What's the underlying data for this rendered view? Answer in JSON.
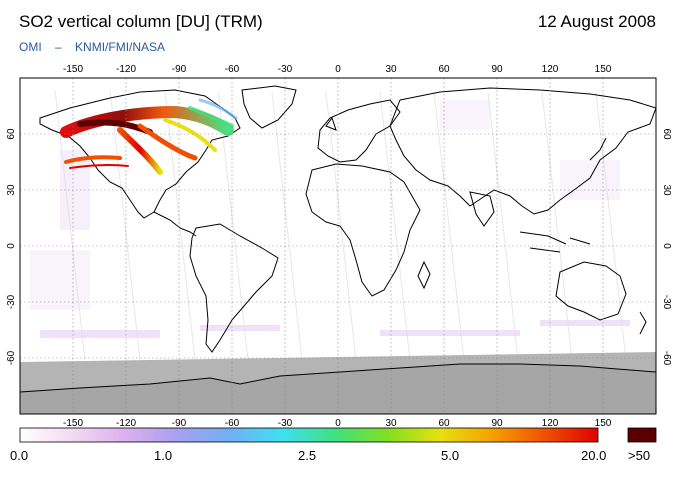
{
  "header": {
    "title": "SO2 vertical column [DU] (TRM)",
    "date": "12 August 2008",
    "subtitle_parts": [
      "OMI",
      "–",
      "KNMI/FMI/NASA"
    ]
  },
  "map": {
    "projection": "equirectangular",
    "lon_range": [
      -180,
      180
    ],
    "lat_range": [
      -90,
      90
    ],
    "lon_ticks": [
      "-150",
      "-120",
      "-90",
      "-60",
      "-30",
      "0",
      "30",
      "60",
      "90",
      "120",
      "150"
    ],
    "lat_ticks": [
      "60",
      "30",
      "0",
      "-30",
      "-60"
    ],
    "plume_region": "North America / North Pacific",
    "colors": {
      "land_outline": "#000000",
      "no_data": "#b4b4b4",
      "antarctica": "#a6a6a6",
      "background": "#ffffff"
    }
  },
  "colorbar": {
    "labels": [
      "0.0",
      "1.0",
      "2.5",
      "5.0",
      "20.0"
    ],
    "overflow_label": ">50",
    "stops": [
      "#ffffff",
      "#f3d9f3",
      "#dcb0ee",
      "#a8a0f0",
      "#6fb0f5",
      "#3fe0f0",
      "#40e080",
      "#80e020",
      "#e8e010",
      "#f5a000",
      "#f05000",
      "#e00000"
    ],
    "overflow_color": "#5a0000"
  }
}
